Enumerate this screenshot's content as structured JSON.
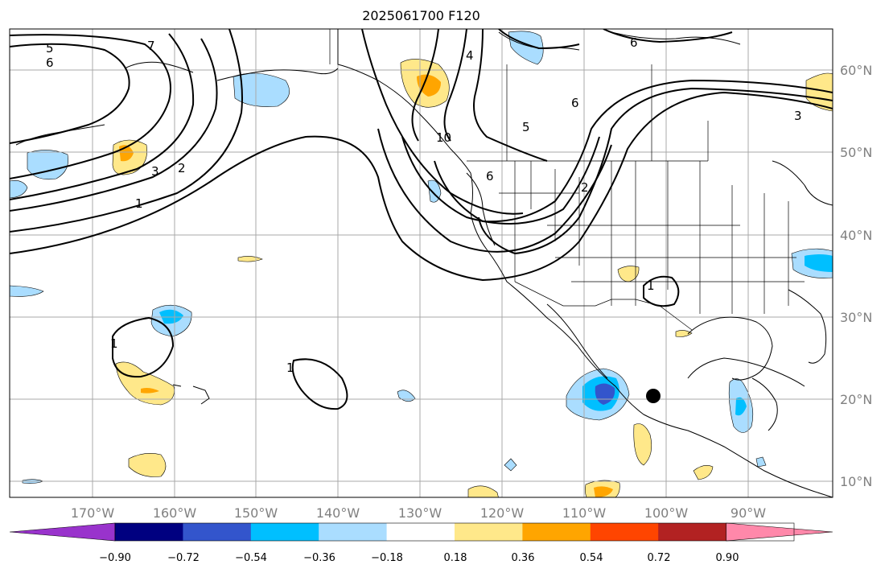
{
  "map": {
    "title": "2025061700 F120",
    "lon_labels": [
      "170°W",
      "160°W",
      "150°W",
      "140°W",
      "130°W",
      "120°W",
      "110°W",
      "100°W",
      "90°W"
    ],
    "lat_labels": [
      "60°N",
      "50°N",
      "40°N",
      "30°N",
      "20°N",
      "10°N"
    ],
    "contour_labels": [
      "5",
      "6",
      "7",
      "3",
      "2",
      "1",
      "6",
      "4",
      "5",
      "10",
      "6",
      "2",
      "6",
      "3",
      "1",
      "1",
      "1"
    ],
    "colorbar": {
      "tick_labels": [
        "−0.90",
        "−0.72",
        "−0.54",
        "−0.36",
        "−0.18",
        "0.18",
        "0.36",
        "0.54",
        "0.72",
        "0.90"
      ],
      "colors": [
        "#9933cc",
        "#000080",
        "#3355cc",
        "#00bfff",
        "#aaddff",
        "#ffffff",
        "#ffe88a",
        "#ffa500",
        "#ff4500",
        "#b22222",
        "#ff88aa"
      ]
    },
    "marker": "black-dot"
  }
}
